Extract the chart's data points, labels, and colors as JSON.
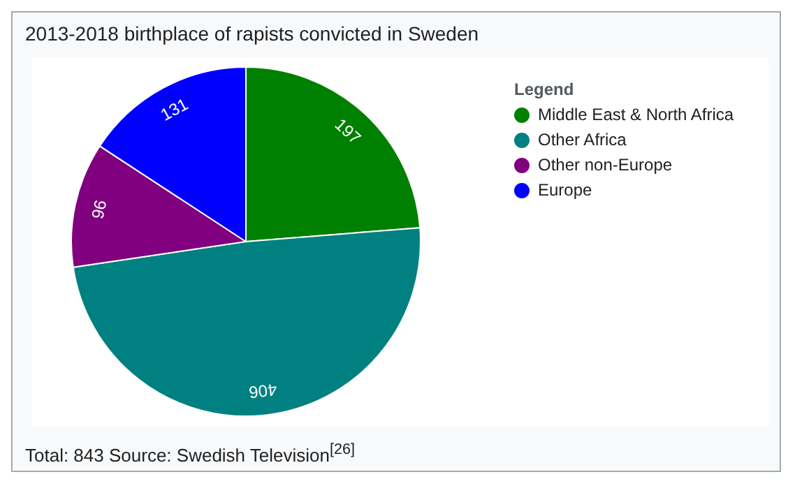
{
  "chart_data": {
    "type": "pie",
    "title": "2013-2018 birthplace of rapists convicted in Sweden",
    "legend_title": "Legend",
    "legend": "top right",
    "data_labels": true,
    "categories": [
      "Middle East & North Africa",
      "Other Africa",
      "Other non-Europe",
      "Europe"
    ],
    "values": [
      197,
      406,
      96,
      131
    ],
    "colors": [
      "#008000",
      "#008080",
      "#800080",
      "#0000ff"
    ],
    "annotations": [
      "Total: 843 Source: Swedish Television$^{[26]}$"
    ]
  }
}
